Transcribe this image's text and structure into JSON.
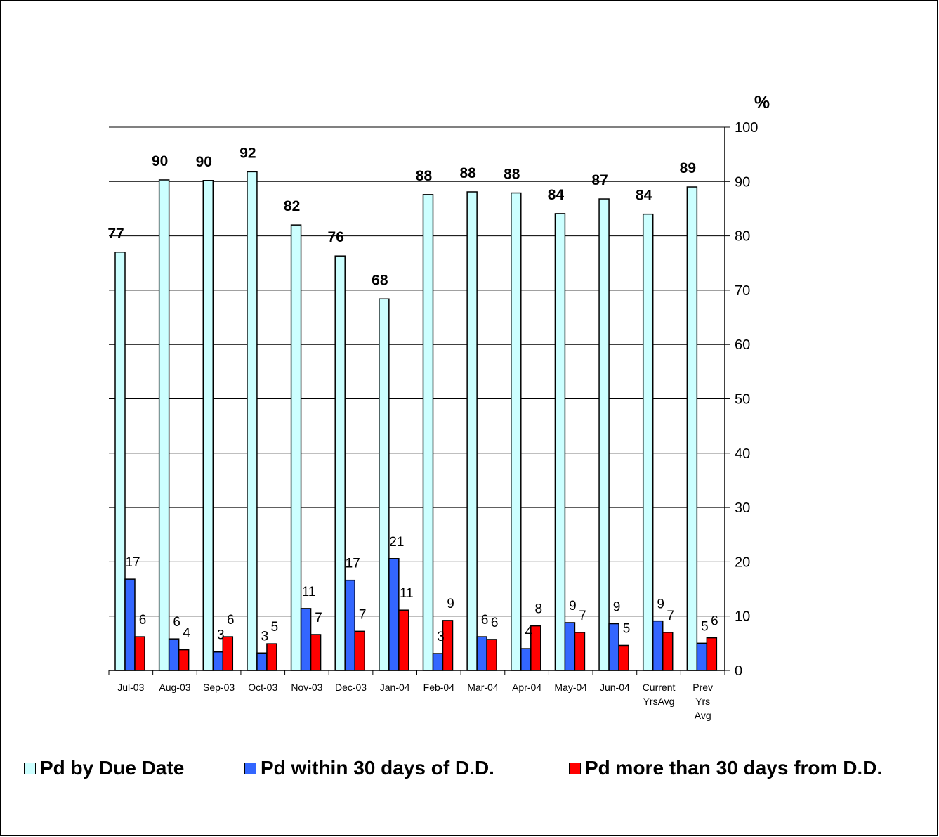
{
  "chart_data": {
    "type": "bar",
    "title": "",
    "xlabel": "",
    "ylabel": "%",
    "ylim": [
      0,
      100
    ],
    "yticks": [
      0,
      10,
      20,
      30,
      40,
      50,
      60,
      70,
      80,
      90,
      100
    ],
    "y_axis_side": "right",
    "grid": true,
    "legend_position": "bottom",
    "categories": [
      [
        "Jul-03"
      ],
      [
        "Aug-03"
      ],
      [
        "Sep-03"
      ],
      [
        "Oct-03"
      ],
      [
        "Nov-03"
      ],
      [
        "Dec-03"
      ],
      [
        "Jan-04"
      ],
      [
        "Feb-04"
      ],
      [
        "Mar-04"
      ],
      [
        "Apr-04"
      ],
      [
        "May-04"
      ],
      [
        "Jun-04"
      ],
      [
        "Current",
        "YrsAvg"
      ],
      [
        "Prev",
        "Yrs",
        "Avg"
      ]
    ],
    "series": [
      {
        "name": "Pd by Due Date",
        "color": "#ccffff",
        "values": [
          77,
          90.3,
          90.2,
          91.8,
          82,
          76.3,
          68.4,
          87.6,
          88.1,
          87.9,
          84.1,
          86.8,
          84,
          89
        ]
      },
      {
        "name": "Pd within 30 days of D.D.",
        "color": "#3366ff",
        "values": [
          16.8,
          5.8,
          3.4,
          3.2,
          11.4,
          16.6,
          20.6,
          3.1,
          6.2,
          4.0,
          8.8,
          8.6,
          9.1,
          5.0
        ]
      },
      {
        "name": "Pd more than 30 days from D.D.",
        "color": "#ff0000",
        "values": [
          6.2,
          3.8,
          6.2,
          4.9,
          6.6,
          7.2,
          11.1,
          9.2,
          5.7,
          8.2,
          7.0,
          4.6,
          7.0,
          6.0
        ]
      }
    ],
    "data_labels": [
      [
        "77",
        "90",
        "90",
        "92",
        "82",
        "76",
        "68",
        "88",
        "88",
        "88",
        "84",
        "87",
        "84",
        "89"
      ],
      [
        "17",
        "6",
        "3",
        "3",
        "11",
        "17",
        "21",
        "3",
        "6",
        "4",
        "9",
        "9",
        "9",
        "5"
      ],
      [
        "6",
        "4",
        "6",
        "5",
        "7",
        "7",
        "11",
        "9",
        "6",
        "8",
        "7",
        "5",
        "7",
        "6"
      ]
    ]
  }
}
